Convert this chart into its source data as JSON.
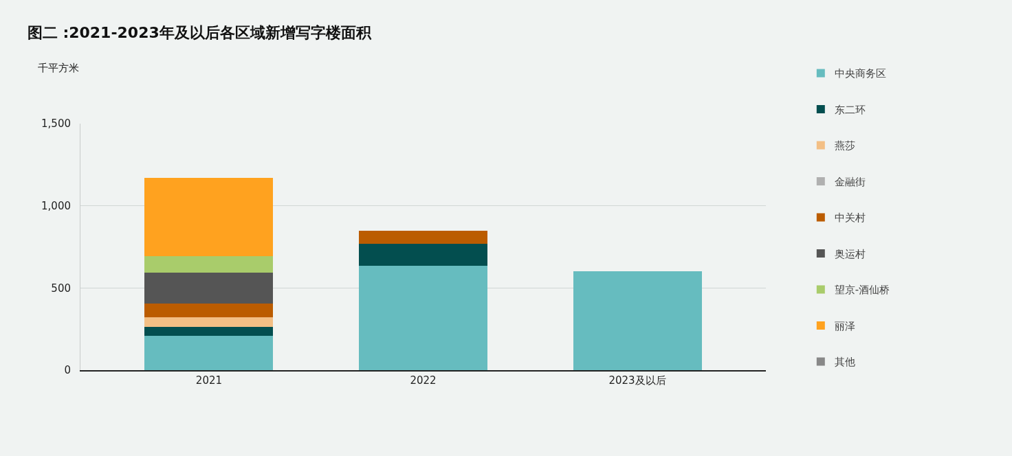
{
  "chart_data": {
    "type": "bar",
    "title": "图二 :2021-2023年及以后各区域新增写字楼面积",
    "ylabel": "千平方米",
    "categories": [
      "2021",
      "2022",
      "2023及以后"
    ],
    "stacked": true,
    "series": [
      {
        "name": "中央商务区",
        "color": "#66bcbf",
        "values": [
          210,
          635,
          600
        ]
      },
      {
        "name": "东二环",
        "color": "#034e4f",
        "values": [
          55,
          135,
          null
        ]
      },
      {
        "name": "燕莎",
        "color": "#f3bf85",
        "values": [
          55,
          null,
          null
        ]
      },
      {
        "name": "金融街",
        "color": "#b0b0b0",
        "values": [
          null,
          null,
          null
        ]
      },
      {
        "name": "中关村",
        "color": "#bb5c00",
        "values": [
          85,
          80,
          null
        ]
      },
      {
        "name": "奥运村",
        "color": "#555555",
        "values": [
          190,
          null,
          null
        ]
      },
      {
        "name": "望京-酒仙桥",
        "color": "#a9cc6b",
        "values": [
          100,
          null,
          null
        ]
      },
      {
        "name": "丽泽",
        "color": "#ffa21f",
        "values": [
          475,
          null,
          null
        ]
      },
      {
        "name": "其他",
        "color": "#888888",
        "values": [
          null,
          null,
          null
        ]
      }
    ],
    "ylim": [
      0,
      1500
    ],
    "yticks": [
      0,
      500,
      {
        "value": 1000,
        "label": "1,000"
      },
      {
        "value": 1500,
        "label": "1,500"
      }
    ],
    "grid": "y",
    "legend": "right"
  }
}
